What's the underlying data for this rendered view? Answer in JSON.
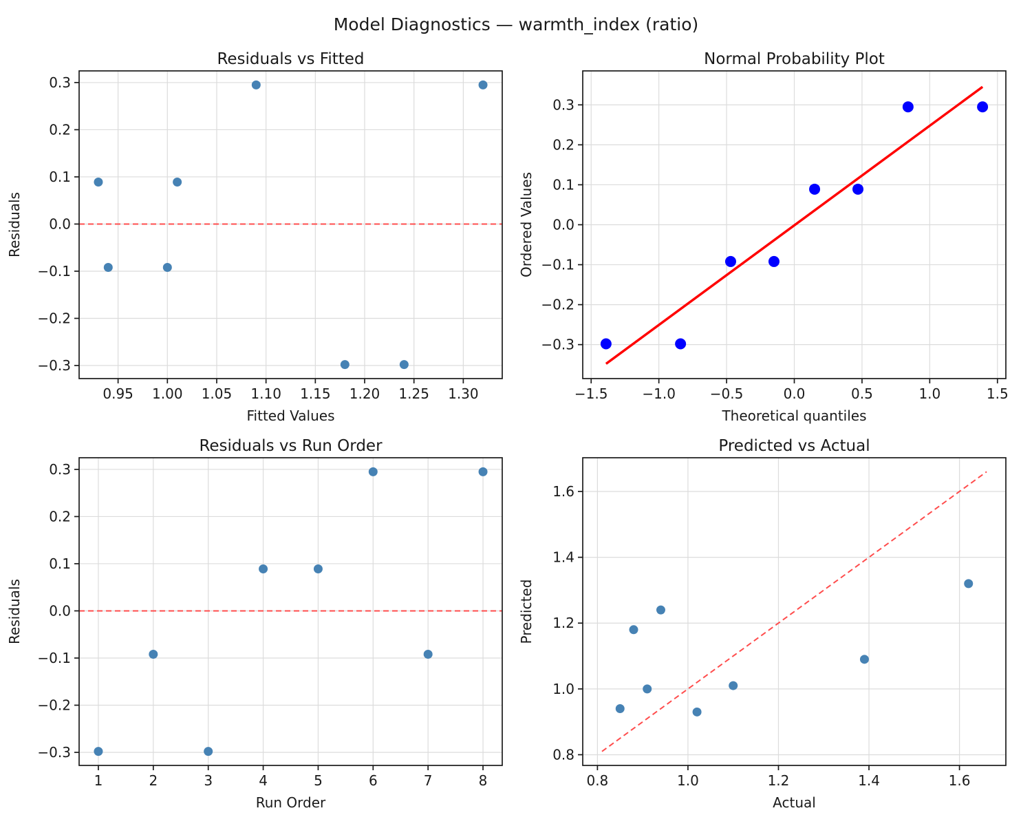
{
  "suptitle": "Model Diagnostics — warmth_index (ratio)",
  "colors": {
    "scatter_marker": "#4682B4",
    "probplot_marker": "#0000FF",
    "probplot_fit_line": "#FF0000",
    "dashed_reference": "#FF4C4C",
    "grid": "#DCDCDC",
    "spine": "#1a1a1a"
  },
  "chart_data": [
    {
      "type": "scatter",
      "id": "residuals-vs-fitted",
      "title": "Residuals vs Fitted",
      "xlabel": "Fitted Values",
      "ylabel": "Residuals",
      "x": [
        0.93,
        1.01,
        1.09,
        1.32,
        0.94,
        1.0,
        1.18,
        1.24
      ],
      "y": [
        0.089,
        0.089,
        0.295,
        0.295,
        -0.092,
        -0.092,
        -0.298,
        -0.298
      ],
      "xlim": [
        0.9105,
        1.3395
      ],
      "ylim": [
        -0.3277,
        0.3247
      ],
      "xticks": [
        0.95,
        1.0,
        1.05,
        1.1,
        1.15,
        1.2,
        1.25,
        1.3
      ],
      "xtick_labels": [
        "0.95",
        "1.00",
        "1.05",
        "1.10",
        "1.15",
        "1.20",
        "1.25",
        "1.30"
      ],
      "yticks": [
        -0.3,
        -0.2,
        -0.1,
        0.0,
        0.1,
        0.2,
        0.3
      ],
      "ytick_labels": [
        "−0.3",
        "−0.2",
        "−0.1",
        "0.0",
        "0.1",
        "0.2",
        "0.3"
      ],
      "grid": true,
      "legend": null,
      "marker": {
        "color": "#4682B4",
        "radius": 6.5
      },
      "lines": [
        {
          "kind": "hline",
          "y": 0,
          "color": "#FF4C4C",
          "width": 2,
          "dash": "8,5",
          "on_top": false
        }
      ]
    },
    {
      "type": "scatter",
      "id": "normal-probability-plot",
      "title": "Normal Probability Plot",
      "xlabel": "Theoretical quantiles",
      "ylabel": "Ordered Values",
      "x": [
        -1.39,
        -0.84,
        -0.47,
        -0.15,
        0.15,
        0.47,
        0.84,
        1.39
      ],
      "y": [
        -0.298,
        -0.298,
        -0.092,
        -0.092,
        0.089,
        0.089,
        0.295,
        0.295
      ],
      "xlim": [
        -1.5621,
        1.5621
      ],
      "ylim": [
        -0.385,
        0.385
      ],
      "xticks": [
        -1.5,
        -1.0,
        -0.5,
        0.0,
        0.5,
        1.0,
        1.5
      ],
      "xtick_labels": [
        "−1.5",
        "−1.0",
        "−0.5",
        "0.0",
        "0.5",
        "1.0",
        "1.5"
      ],
      "yticks": [
        -0.3,
        -0.2,
        -0.1,
        0.0,
        0.1,
        0.2,
        0.3
      ],
      "ytick_labels": [
        "−0.3",
        "−0.2",
        "−0.1",
        "0.0",
        "0.1",
        "0.2",
        "0.3"
      ],
      "grid": true,
      "legend": null,
      "marker": {
        "color": "#0000FF",
        "radius": 8
      },
      "lines": [
        {
          "kind": "segment",
          "x1": -1.39,
          "y1": -0.348,
          "x2": 1.39,
          "y2": 0.345,
          "color": "#FF0000",
          "width": 3.5,
          "dash": null,
          "on_top": true
        }
      ]
    },
    {
      "type": "scatter",
      "id": "residuals-vs-run-order",
      "title": "Residuals vs Run Order",
      "xlabel": "Run Order",
      "ylabel": "Residuals",
      "x": [
        1,
        2,
        3,
        4,
        5,
        6,
        7,
        8
      ],
      "y": [
        -0.298,
        -0.092,
        -0.298,
        0.089,
        0.089,
        0.295,
        -0.092,
        0.295
      ],
      "xlim": [
        0.65,
        8.35
      ],
      "ylim": [
        -0.3277,
        0.3247
      ],
      "xticks": [
        1,
        2,
        3,
        4,
        5,
        6,
        7,
        8
      ],
      "xtick_labels": [
        "1",
        "2",
        "3",
        "4",
        "5",
        "6",
        "7",
        "8"
      ],
      "yticks": [
        -0.3,
        -0.2,
        -0.1,
        0.0,
        0.1,
        0.2,
        0.3
      ],
      "ytick_labels": [
        "−0.3",
        "−0.2",
        "−0.1",
        "0.0",
        "0.1",
        "0.2",
        "0.3"
      ],
      "grid": true,
      "legend": null,
      "marker": {
        "color": "#4682B4",
        "radius": 6.5
      },
      "lines": [
        {
          "kind": "hline",
          "y": 0,
          "color": "#FF4C4C",
          "width": 2,
          "dash": "8,5",
          "on_top": false
        }
      ]
    },
    {
      "type": "scatter",
      "id": "predicted-vs-actual",
      "title": "Predicted vs Actual",
      "xlabel": "Actual",
      "ylabel": "Predicted",
      "x": [
        0.85,
        0.88,
        0.91,
        0.94,
        1.02,
        1.1,
        1.39,
        1.62
      ],
      "y": [
        0.94,
        1.18,
        1.0,
        1.24,
        0.93,
        1.01,
        1.09,
        1.32
      ],
      "xlim": [
        0.7675,
        1.7025
      ],
      "ylim": [
        0.7675,
        1.7025
      ],
      "xticks": [
        0.8,
        1.0,
        1.2,
        1.4,
        1.6
      ],
      "xtick_labels": [
        "0.8",
        "1.0",
        "1.2",
        "1.4",
        "1.6"
      ],
      "yticks": [
        0.8,
        1.0,
        1.2,
        1.4,
        1.6
      ],
      "ytick_labels": [
        "0.8",
        "1.0",
        "1.2",
        "1.4",
        "1.6"
      ],
      "grid": true,
      "legend": null,
      "marker": {
        "color": "#4682B4",
        "radius": 6.5
      },
      "lines": [
        {
          "kind": "segment",
          "x1": 0.81,
          "y1": 0.81,
          "x2": 1.66,
          "y2": 1.66,
          "color": "#FF4C4C",
          "width": 2,
          "dash": "8,5",
          "on_top": false
        }
      ]
    }
  ]
}
